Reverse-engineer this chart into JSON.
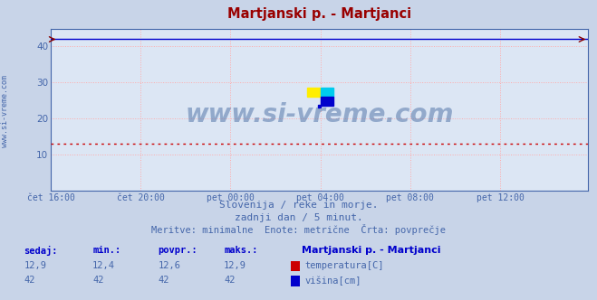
{
  "title": "Martjanski p. - Martjanci",
  "title_color": "#990000",
  "bg_color": "#c8d4e8",
  "plot_bg_color": "#dce6f4",
  "grid_color": "#ffaaaa",
  "grid_style": ":",
  "x_labels": [
    "čet 16:00",
    "čet 20:00",
    "pet 00:00",
    "pet 04:00",
    "pet 08:00",
    "pet 12:00"
  ],
  "x_ticks_pos": [
    0,
    48,
    96,
    144,
    192,
    240
  ],
  "total_points": 288,
  "ylim": [
    0,
    45
  ],
  "yticks": [
    10,
    20,
    30,
    40
  ],
  "temp_value": "12,9",
  "temp_min": "12,4",
  "temp_avg": "12,6",
  "temp_max": "12,9",
  "height_value": "42",
  "height_min": "42",
  "height_avg": "42",
  "height_max": "42",
  "temp_color": "#cc0000",
  "height_color": "#0000cc",
  "temp_line_y": 12.9,
  "height_line_y": 42.0,
  "watermark": "www.si-vreme.com",
  "watermark_color": "#5577aa",
  "watermark_alpha": 0.55,
  "subtitle1": "Slovenija / reke in morje.",
  "subtitle2": "zadnji dan / 5 minut.",
  "subtitle3": "Meritve: minimalne  Enote: metrične  Črta: povprečje",
  "subtitle_color": "#4466aa",
  "tick_color": "#4466aa",
  "label_color": "#0000cc",
  "legend_title": "Martjanski p. - Martjanci",
  "legend_title_color": "#0000cc",
  "arrow_color": "#880000",
  "spine_color": "#4466aa",
  "logo_yellow": "#ffee00",
  "logo_cyan": "#00ccee",
  "logo_blue": "#0000cc"
}
